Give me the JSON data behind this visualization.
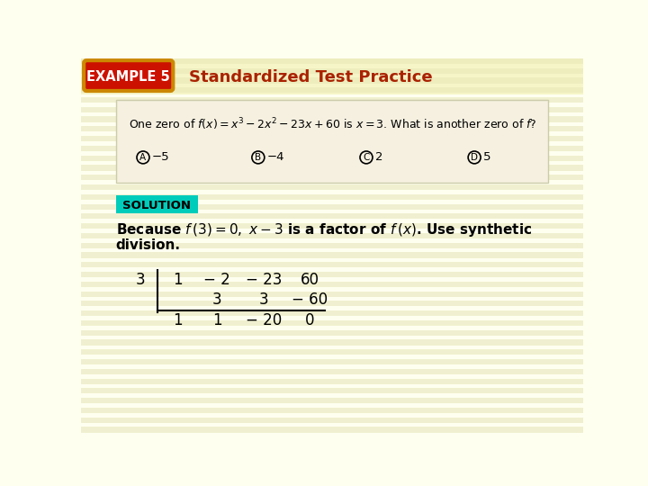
{
  "bg_color": "#fffff0",
  "stripe_color": "#f0f0d0",
  "header_bg": "#f5f5c8",
  "badge_bg": "#cc1100",
  "badge_border": "#cc8800",
  "badge_text": "EXAMPLE 5",
  "title_text": "Standardized Test Practice",
  "title_color": "#aa2200",
  "qbox_bg": "#f5f0e0",
  "qbox_border": "#ccccaa",
  "question_text": "One zero of $f(x) = x^3 - 2x^2 - 23x + 60$ is $x = 3$. What is another zero of $f$?",
  "choices_labels": [
    "A",
    "B",
    "C",
    "D"
  ],
  "choices_vals": [
    "−5",
    "−4",
    "2",
    "5"
  ],
  "sol_bg": "#00ccbb",
  "sol_text": "SOLUTION",
  "body_line1a": "Because ",
  "body_line1b": "$f(3) = 0$, $x - 3$",
  "body_line1c": " is a factor of ",
  "body_line1d": "$f(x)$",
  "body_line1e": ". Use synthetic",
  "body_line2": "division.",
  "synth_divisor": "3",
  "synth_row1": [
    "1",
    "− 2",
    "− 23",
    "60"
  ],
  "synth_row2": [
    "",
    "3",
    "3",
    "− 60"
  ],
  "synth_row3": [
    "1",
    "1",
    "− 20",
    "0"
  ]
}
